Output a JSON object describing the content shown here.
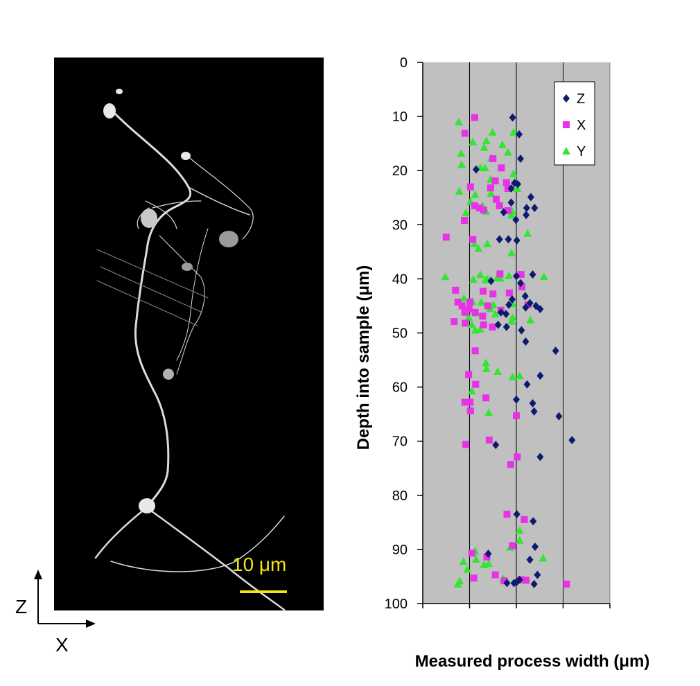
{
  "micrograph": {
    "scale_bar_label": "10 μm",
    "scale_bar_color": "#f2e415",
    "axis_vertical_label": "Z",
    "axis_horizontal_label": "X"
  },
  "chart_data": {
    "type": "scatter",
    "ylabel": "Depth into sample  (μm)",
    "xlabel": "Measured process width (μm)",
    "ylim": [
      0,
      100
    ],
    "y_inverted": true,
    "y_ticks": [
      0,
      10,
      20,
      30,
      40,
      50,
      60,
      70,
      80,
      90,
      100
    ],
    "xlim": [
      0,
      4
    ],
    "x_tick_labels_shown": false,
    "grid": "vertical",
    "legend_position": "top-right",
    "plot_background": "#c0c0c0",
    "series": [
      {
        "name": "Z",
        "marker": "diamond",
        "color": "#0d1a6e",
        "points": [
          [
            1.92,
            10.2
          ],
          [
            2.06,
            13.3
          ],
          [
            2.09,
            17.8
          ],
          [
            1.14,
            19.8
          ],
          [
            1.96,
            22.3
          ],
          [
            2.03,
            22.5
          ],
          [
            1.89,
            23.3
          ],
          [
            2.31,
            24.9
          ],
          [
            1.89,
            25.9
          ],
          [
            2.22,
            26.9
          ],
          [
            2.39,
            26.9
          ],
          [
            1.73,
            27.7
          ],
          [
            2.21,
            28.2
          ],
          [
            1.99,
            29.1
          ],
          [
            1.64,
            32.7
          ],
          [
            1.83,
            32.7
          ],
          [
            2.01,
            32.9
          ],
          [
            2.35,
            39.2
          ],
          [
            2.0,
            39.5
          ],
          [
            1.46,
            40.4
          ],
          [
            2.09,
            40.8
          ],
          [
            2.19,
            43.2
          ],
          [
            1.91,
            43.8
          ],
          [
            2.29,
            44.5
          ],
          [
            1.84,
            44.8
          ],
          [
            2.42,
            45.0
          ],
          [
            2.2,
            45.3
          ],
          [
            2.51,
            45.6
          ],
          [
            1.67,
            46.2
          ],
          [
            1.78,
            46.5
          ],
          [
            1.61,
            48.5
          ],
          [
            1.79,
            48.9
          ],
          [
            2.11,
            49.5
          ],
          [
            2.2,
            51.6
          ],
          [
            2.84,
            53.3
          ],
          [
            2.51,
            57.9
          ],
          [
            2.23,
            59.5
          ],
          [
            2.0,
            62.3
          ],
          [
            2.35,
            63.0
          ],
          [
            2.38,
            64.5
          ],
          [
            2.91,
            65.4
          ],
          [
            1.56,
            70.7
          ],
          [
            3.19,
            69.8
          ],
          [
            2.51,
            72.9
          ],
          [
            2.01,
            83.5
          ],
          [
            2.36,
            84.8
          ],
          [
            2.4,
            89.5
          ],
          [
            1.4,
            90.8
          ],
          [
            2.29,
            91.9
          ],
          [
            2.45,
            94.7
          ],
          [
            2.07,
            95.6
          ],
          [
            1.95,
            96.2
          ],
          [
            2.01,
            96.0
          ],
          [
            1.8,
            96.2
          ],
          [
            2.38,
            96.4
          ]
        ]
      },
      {
        "name": "X",
        "marker": "square",
        "color": "#e633e6",
        "points": [
          [
            1.11,
            10.2
          ],
          [
            0.9,
            13.1
          ],
          [
            1.5,
            17.8
          ],
          [
            1.68,
            19.5
          ],
          [
            1.55,
            21.9
          ],
          [
            1.79,
            22.2
          ],
          [
            1.02,
            23.0
          ],
          [
            1.45,
            23.2
          ],
          [
            1.82,
            23.3
          ],
          [
            1.57,
            25.3
          ],
          [
            1.64,
            26.5
          ],
          [
            1.11,
            26.5
          ],
          [
            1.3,
            27.3
          ],
          [
            1.21,
            26.9
          ],
          [
            1.82,
            27.4
          ],
          [
            0.89,
            29.2
          ],
          [
            0.5,
            32.3
          ],
          [
            1.07,
            32.7
          ],
          [
            1.65,
            39.1
          ],
          [
            2.1,
            39.2
          ],
          [
            2.12,
            41.5
          ],
          [
            0.7,
            42.1
          ],
          [
            1.29,
            42.3
          ],
          [
            1.5,
            42.8
          ],
          [
            1.85,
            42.6
          ],
          [
            0.75,
            44.3
          ],
          [
            1.01,
            44.3
          ],
          [
            0.84,
            45.0
          ],
          [
            1.39,
            45.0
          ],
          [
            2.25,
            44.8
          ],
          [
            0.99,
            45.6
          ],
          [
            0.9,
            46.2
          ],
          [
            1.12,
            46.2
          ],
          [
            1.67,
            45.8
          ],
          [
            1.28,
            46.9
          ],
          [
            0.67,
            47.9
          ],
          [
            0.91,
            48.2
          ],
          [
            1.3,
            48.5
          ],
          [
            1.49,
            48.9
          ],
          [
            1.12,
            53.3
          ],
          [
            1.13,
            59.5
          ],
          [
            0.98,
            57.7
          ],
          [
            1.35,
            62.0
          ],
          [
            1.01,
            62.8
          ],
          [
            1.02,
            64.4
          ],
          [
            2.0,
            65.3
          ],
          [
            0.9,
            62.8
          ],
          [
            1.42,
            69.8
          ],
          [
            2.02,
            72.9
          ],
          [
            0.92,
            70.6
          ],
          [
            1.88,
            74.3
          ],
          [
            1.8,
            83.5
          ],
          [
            2.17,
            84.5
          ],
          [
            1.92,
            89.3
          ],
          [
            1.37,
            91.4
          ],
          [
            1.05,
            90.7
          ],
          [
            1.09,
            95.3
          ],
          [
            1.55,
            94.7
          ],
          [
            2.21,
            95.7
          ],
          [
            1.74,
            95.8
          ],
          [
            2.09,
            95.6
          ],
          [
            3.07,
            96.4
          ]
        ]
      },
      {
        "name": "Y",
        "marker": "triangle",
        "color": "#33e633",
        "points": [
          [
            0.77,
            11.0
          ],
          [
            1.49,
            12.9
          ],
          [
            1.94,
            12.9
          ],
          [
            1.36,
            14.5
          ],
          [
            1.07,
            14.7
          ],
          [
            1.7,
            15.2
          ],
          [
            1.31,
            15.7
          ],
          [
            1.82,
            16.6
          ],
          [
            0.82,
            16.8
          ],
          [
            1.46,
            17.7
          ],
          [
            0.83,
            18.9
          ],
          [
            1.23,
            19.4
          ],
          [
            1.33,
            19.5
          ],
          [
            1.94,
            20.6
          ],
          [
            1.45,
            21.6
          ],
          [
            2.02,
            23.3
          ],
          [
            0.78,
            23.8
          ],
          [
            1.46,
            24.2
          ],
          [
            1.12,
            24.4
          ],
          [
            1.02,
            25.7
          ],
          [
            1.28,
            26.5
          ],
          [
            1.35,
            27.5
          ],
          [
            0.92,
            27.8
          ],
          [
            1.89,
            28.2
          ],
          [
            1.91,
            27.5
          ],
          [
            2.24,
            31.6
          ],
          [
            1.1,
            33.5
          ],
          [
            1.38,
            33.5
          ],
          [
            1.19,
            34.4
          ],
          [
            1.9,
            35.2
          ],
          [
            0.48,
            39.6
          ],
          [
            1.23,
            39.2
          ],
          [
            1.84,
            39.4
          ],
          [
            1.59,
            39.8
          ],
          [
            1.66,
            39.9
          ],
          [
            2.59,
            39.6
          ],
          [
            1.39,
            40.0
          ],
          [
            1.08,
            40.1
          ],
          [
            1.34,
            40.2
          ],
          [
            0.88,
            43.6
          ],
          [
            1.06,
            44.2
          ],
          [
            1.25,
            44.3
          ],
          [
            1.51,
            44.8
          ],
          [
            1.92,
            44.6
          ],
          [
            1.44,
            45.5
          ],
          [
            1.15,
            46.3
          ],
          [
            1.55,
            46.5
          ],
          [
            0.98,
            47.1
          ],
          [
            1.92,
            47.1
          ],
          [
            1.9,
            47.8
          ],
          [
            2.3,
            47.6
          ],
          [
            1.05,
            48.5
          ],
          [
            1.23,
            49.3
          ],
          [
            1.12,
            49.5
          ],
          [
            1.35,
            55.5
          ],
          [
            1.36,
            56.6
          ],
          [
            1.6,
            57.1
          ],
          [
            1.92,
            58.1
          ],
          [
            2.07,
            57.9
          ],
          [
            1.05,
            60.7
          ],
          [
            1.41,
            64.7
          ],
          [
            2.07,
            86.5
          ],
          [
            1.87,
            89.6
          ],
          [
            2.07,
            88.3
          ],
          [
            1.12,
            90.3
          ],
          [
            2.57,
            91.6
          ],
          [
            0.87,
            92.2
          ],
          [
            1.14,
            91.8
          ],
          [
            0.95,
            93.7
          ],
          [
            1.31,
            92.8
          ],
          [
            1.41,
            92.6
          ],
          [
            0.75,
            96.4
          ],
          [
            0.79,
            95.8
          ],
          [
            1.72,
            95.4
          ]
        ]
      }
    ]
  }
}
